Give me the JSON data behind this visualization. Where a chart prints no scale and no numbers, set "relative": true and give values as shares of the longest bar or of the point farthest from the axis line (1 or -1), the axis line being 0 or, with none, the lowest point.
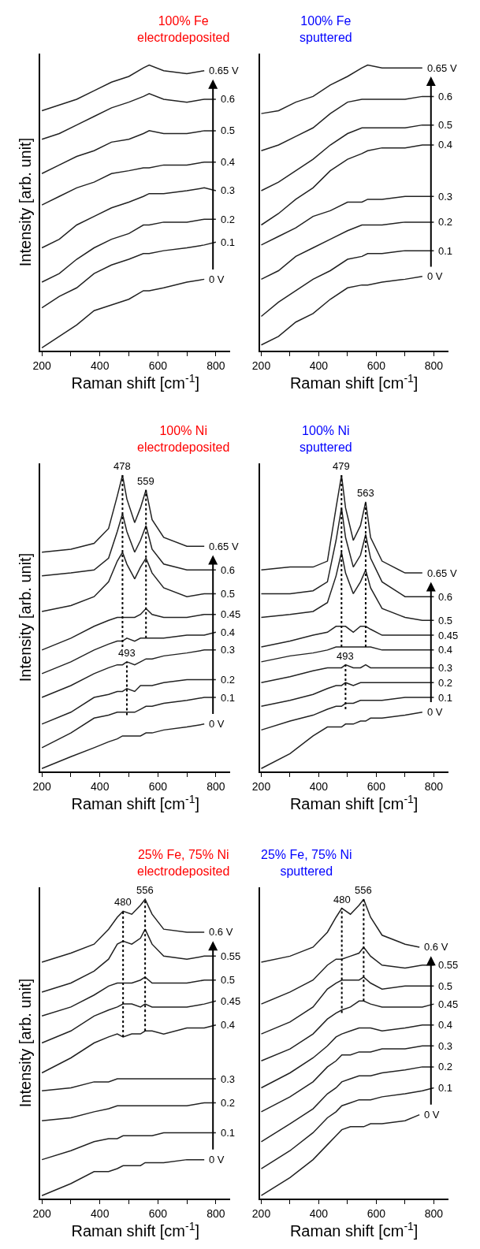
{
  "chart_data": [
    {
      "type": "line",
      "title": "100% Fe\nelectrodeposited",
      "xlabel": "Raman shift [cm$^{-1}$]",
      "ylabel": "Intensity [arb. unit]",
      "relative": true,
      "xlim": [
        195,
        850
      ],
      "xticks": [
        200,
        {
          "value": 300,
          "label": null
        },
        400,
        {
          "value": 500,
          "label": null
        },
        600,
        {
          "value": 700,
          "label": null
        },
        800
      ],
      "grid": false,
      "legend": false,
      "line_style": "solid",
      "x": [
        200,
        260,
        320,
        380,
        440,
        500,
        550,
        570,
        620,
        700,
        760,
        800
      ],
      "series": [
        {
          "name": "0.65 V",
          "color": "#222222",
          "x": [
            200,
            260,
            320,
            380,
            440,
            500,
            550,
            570,
            620,
            700,
            760
          ],
          "values": [
            0.84,
            0.86,
            0.88,
            0.91,
            0.94,
            0.96,
            0.99,
            1.0,
            0.98,
            0.97,
            0.98
          ]
        },
        {
          "name": "0.6",
          "color": "#222222",
          "values": [
            0.74,
            0.76,
            0.79,
            0.82,
            0.85,
            0.87,
            0.89,
            0.9,
            0.88,
            0.87,
            0.88,
            0.88
          ]
        },
        {
          "name": "0.5",
          "color": "#222222",
          "values": [
            0.62,
            0.65,
            0.68,
            0.7,
            0.73,
            0.74,
            0.76,
            0.77,
            0.76,
            0.76,
            0.77,
            0.77
          ]
        },
        {
          "name": "0.4",
          "color": "#222222",
          "values": [
            0.51,
            0.54,
            0.57,
            0.59,
            0.62,
            0.63,
            0.64,
            0.64,
            0.65,
            0.65,
            0.66,
            0.66
          ]
        },
        {
          "name": "0.3",
          "color": "#222222",
          "values": [
            0.36,
            0.39,
            0.44,
            0.47,
            0.5,
            0.52,
            0.54,
            0.55,
            0.55,
            0.56,
            0.57,
            0.56
          ]
        },
        {
          "name": "0.2",
          "color": "#222222",
          "values": [
            0.24,
            0.27,
            0.32,
            0.36,
            0.39,
            0.41,
            0.44,
            0.44,
            0.45,
            0.45,
            0.46,
            0.46
          ]
        },
        {
          "name": "0.1",
          "color": "#222222",
          "values": [
            0.15,
            0.19,
            0.22,
            0.27,
            0.3,
            0.32,
            0.34,
            0.34,
            0.35,
            0.36,
            0.37,
            0.38
          ]
        },
        {
          "name": "0 V",
          "color": "#222222",
          "x": [
            200,
            260,
            320,
            380,
            440,
            500,
            550,
            570,
            620,
            700,
            760
          ],
          "values": [
            0.01,
            0.05,
            0.09,
            0.14,
            0.16,
            0.18,
            0.21,
            0.21,
            0.22,
            0.24,
            0.25
          ]
        }
      ]
    },
    {
      "type": "line",
      "title": "100% Fe\nsputtered",
      "xlabel": "Raman shift [cm$^{-1}$]",
      "relative": true,
      "xlim": [
        195,
        850
      ],
      "xticks": [
        200,
        {
          "value": 300,
          "label": null
        },
        400,
        {
          "value": 500,
          "label": null
        },
        600,
        {
          "value": 700,
          "label": null
        },
        800
      ],
      "grid": false,
      "legend": false,
      "line_style": "solid",
      "x": [
        200,
        260,
        320,
        380,
        440,
        500,
        550,
        570,
        620,
        700,
        760,
        800
      ],
      "series": [
        {
          "name": "0.65 V",
          "color": "#222222",
          "x": [
            200,
            260,
            320,
            380,
            440,
            500,
            550,
            570,
            620,
            700,
            760
          ],
          "values": [
            0.83,
            0.84,
            0.87,
            0.89,
            0.93,
            0.96,
            0.99,
            1.0,
            0.99,
            0.99,
            0.99
          ]
        },
        {
          "name": "0.6",
          "color": "#222222",
          "values": [
            0.7,
            0.72,
            0.75,
            0.78,
            0.83,
            0.87,
            0.88,
            0.88,
            0.88,
            0.88,
            0.89,
            0.89
          ]
        },
        {
          "name": "0.5",
          "color": "#222222",
          "values": [
            0.56,
            0.59,
            0.63,
            0.67,
            0.72,
            0.76,
            0.78,
            0.78,
            0.78,
            0.78,
            0.79,
            0.79
          ]
        },
        {
          "name": "0.4",
          "color": "#222222",
          "values": [
            0.44,
            0.48,
            0.53,
            0.57,
            0.63,
            0.67,
            0.69,
            0.7,
            0.71,
            0.71,
            0.72,
            0.72
          ]
        },
        {
          "name": "0.3",
          "color": "#222222",
          "values": [
            0.37,
            0.4,
            0.43,
            0.47,
            0.49,
            0.52,
            0.52,
            0.53,
            0.53,
            0.54,
            0.54,
            0.54
          ]
        },
        {
          "name": "0.2",
          "color": "#222222",
          "values": [
            0.25,
            0.28,
            0.33,
            0.36,
            0.39,
            0.42,
            0.44,
            0.44,
            0.44,
            0.45,
            0.45,
            0.45
          ]
        },
        {
          "name": "0.1",
          "color": "#222222",
          "values": [
            0.12,
            0.17,
            0.21,
            0.25,
            0.28,
            0.32,
            0.33,
            0.34,
            0.34,
            0.35,
            0.35,
            0.35
          ]
        },
        {
          "name": "0 V",
          "color": "#222222",
          "x": [
            200,
            260,
            320,
            380,
            440,
            500,
            550,
            570,
            620,
            700,
            760
          ],
          "values": [
            0.02,
            0.05,
            0.1,
            0.13,
            0.18,
            0.22,
            0.23,
            0.23,
            0.24,
            0.25,
            0.26
          ]
        }
      ]
    },
    {
      "type": "line",
      "title": "100% Ni\nelectrodeposited",
      "xlabel": "Raman shift [cm$^{-1}$]",
      "ylabel": "Intensity [arb. unit]",
      "relative": true,
      "xlim": [
        195,
        850
      ],
      "xticks": [
        200,
        {
          "value": 300,
          "label": null
        },
        400,
        {
          "value": 500,
          "label": null
        },
        600,
        {
          "value": 700,
          "label": null
        },
        800
      ],
      "grid": false,
      "legend": false,
      "line_style": "solid",
      "x": [
        200,
        300,
        380,
        430,
        460,
        478,
        493,
        520,
        540,
        559,
        580,
        620,
        700,
        760,
        800
      ],
      "annotations": [
        {
          "text": "478",
          "x": 478,
          "y": 1.0
        },
        {
          "text": "559",
          "x": 559,
          "y": 0.95
        },
        {
          "text": "493",
          "x": 493,
          "y": 0.37
        }
      ],
      "series": [
        {
          "name": "0.65 V",
          "color": "#222222",
          "x": [
            200,
            300,
            380,
            430,
            460,
            478,
            493,
            520,
            540,
            559,
            580,
            620,
            700,
            760
          ],
          "values": [
            0.74,
            0.75,
            0.77,
            0.82,
            0.93,
            1.0,
            0.92,
            0.84,
            0.89,
            0.95,
            0.85,
            0.79,
            0.76,
            0.76
          ]
        },
        {
          "name": "0.6",
          "color": "#222222",
          "values": [
            0.66,
            0.67,
            0.68,
            0.72,
            0.81,
            0.87,
            0.81,
            0.74,
            0.78,
            0.83,
            0.75,
            0.7,
            0.68,
            0.68,
            0.68
          ]
        },
        {
          "name": "0.5",
          "color": "#222222",
          "values": [
            0.54,
            0.56,
            0.59,
            0.64,
            0.71,
            0.74,
            0.7,
            0.65,
            0.69,
            0.72,
            0.67,
            0.62,
            0.59,
            0.6,
            0.6
          ]
        },
        {
          "name": "0.45",
          "color": "#222222",
          "values": [
            0.41,
            0.45,
            0.49,
            0.51,
            0.52,
            0.52,
            0.52,
            0.52,
            0.53,
            0.55,
            0.53,
            0.52,
            0.52,
            0.53,
            0.53
          ]
        },
        {
          "name": "0.4",
          "color": "#222222",
          "values": [
            0.33,
            0.37,
            0.41,
            0.43,
            0.44,
            0.44,
            0.45,
            0.44,
            0.45,
            0.45,
            0.45,
            0.45,
            0.46,
            0.46,
            0.47
          ]
        },
        {
          "name": "0.3",
          "color": "#222222",
          "values": [
            0.25,
            0.29,
            0.33,
            0.35,
            0.36,
            0.36,
            0.37,
            0.36,
            0.37,
            0.38,
            0.38,
            0.39,
            0.4,
            0.41,
            0.41
          ]
        },
        {
          "name": "0.2",
          "color": "#222222",
          "values": [
            0.16,
            0.2,
            0.25,
            0.26,
            0.27,
            0.27,
            0.28,
            0.27,
            0.29,
            0.29,
            0.29,
            0.3,
            0.31,
            0.31,
            0.31
          ]
        },
        {
          "name": "0.1",
          "color": "#222222",
          "values": [
            0.08,
            0.13,
            0.18,
            0.19,
            0.2,
            0.2,
            0.2,
            0.2,
            0.21,
            0.22,
            0.22,
            0.23,
            0.24,
            0.25,
            0.25
          ]
        },
        {
          "name": "0 V",
          "color": "#222222",
          "x": [
            200,
            300,
            380,
            430,
            460,
            478,
            493,
            520,
            540,
            559,
            580,
            620,
            700,
            760
          ],
          "values": [
            0.01,
            0.05,
            0.08,
            0.1,
            0.11,
            0.12,
            0.12,
            0.12,
            0.12,
            0.13,
            0.13,
            0.14,
            0.15,
            0.16
          ]
        },
        {
          "color": "#000000",
          "line_style": "dotted",
          "x": [
            478,
            478
          ],
          "values": [
            0.42,
            1.0
          ]
        },
        {
          "color": "#000000",
          "line_style": "dotted",
          "x": [
            559,
            559
          ],
          "values": [
            0.45,
            0.95
          ]
        },
        {
          "color": "#000000",
          "line_style": "dotted",
          "x": [
            493,
            493
          ],
          "values": [
            0.19,
            0.37
          ]
        }
      ]
    },
    {
      "type": "line",
      "title": "100% Ni\nsputtered",
      "xlabel": "Raman shift [cm$^{-1}$]",
      "relative": true,
      "xlim": [
        195,
        850
      ],
      "xticks": [
        200,
        {
          "value": 300,
          "label": null
        },
        400,
        {
          "value": 500,
          "label": null
        },
        600,
        {
          "value": 700,
          "label": null
        },
        800
      ],
      "grid": false,
      "legend": false,
      "line_style": "solid",
      "x": [
        200,
        300,
        380,
        430,
        460,
        479,
        493,
        520,
        545,
        563,
        580,
        620,
        700,
        760,
        800
      ],
      "annotations": [
        {
          "text": "479",
          "x": 479,
          "y": 1.0
        },
        {
          "text": "563",
          "x": 563,
          "y": 0.91
        },
        {
          "text": "493",
          "x": 493,
          "y": 0.36
        }
      ],
      "series": [
        {
          "name": "0.65 V",
          "color": "#222222",
          "x": [
            200,
            300,
            380,
            430,
            460,
            479,
            493,
            520,
            545,
            563,
            580,
            620,
            700,
            760
          ],
          "values": [
            0.68,
            0.69,
            0.69,
            0.71,
            0.89,
            1.0,
            0.89,
            0.78,
            0.83,
            0.91,
            0.79,
            0.71,
            0.67,
            0.67
          ]
        },
        {
          "name": "0.6",
          "color": "#222222",
          "values": [
            0.6,
            0.6,
            0.61,
            0.64,
            0.78,
            0.89,
            0.79,
            0.69,
            0.73,
            0.8,
            0.72,
            0.64,
            0.59,
            0.59,
            0.59
          ]
        },
        {
          "name": "0.5",
          "color": "#222222",
          "values": [
            0.52,
            0.53,
            0.54,
            0.57,
            0.66,
            0.74,
            0.67,
            0.6,
            0.64,
            0.68,
            0.62,
            0.55,
            0.52,
            0.51,
            0.51
          ]
        },
        {
          "name": "0.45",
          "color": "#222222",
          "values": [
            0.42,
            0.44,
            0.46,
            0.47,
            0.49,
            0.49,
            0.49,
            0.47,
            0.49,
            0.49,
            0.48,
            0.46,
            0.46,
            0.46,
            0.46
          ]
        },
        {
          "name": "0.4",
          "color": "#222222",
          "values": [
            0.37,
            0.39,
            0.4,
            0.41,
            0.42,
            0.42,
            0.42,
            0.42,
            0.42,
            0.42,
            0.42,
            0.41,
            0.41,
            0.41,
            0.41
          ]
        },
        {
          "name": "0.3",
          "color": "#222222",
          "values": [
            0.3,
            0.32,
            0.34,
            0.35,
            0.35,
            0.35,
            0.36,
            0.35,
            0.35,
            0.36,
            0.35,
            0.35,
            0.35,
            0.35,
            0.35
          ]
        },
        {
          "name": "0.2",
          "color": "#222222",
          "values": [
            0.22,
            0.24,
            0.26,
            0.28,
            0.29,
            0.29,
            0.3,
            0.29,
            0.3,
            0.3,
            0.3,
            0.3,
            0.3,
            0.3,
            0.3
          ]
        },
        {
          "name": "0.1",
          "color": "#222222",
          "values": [
            0.14,
            0.17,
            0.19,
            0.21,
            0.22,
            0.22,
            0.23,
            0.23,
            0.24,
            0.24,
            0.24,
            0.24,
            0.25,
            0.25,
            0.25
          ]
        },
        {
          "name": "0 V",
          "color": "#222222",
          "x": [
            200,
            300,
            380,
            430,
            460,
            479,
            493,
            520,
            545,
            563,
            580,
            620,
            700,
            760
          ],
          "values": [
            0.01,
            0.06,
            0.12,
            0.15,
            0.15,
            0.15,
            0.16,
            0.16,
            0.17,
            0.17,
            0.18,
            0.18,
            0.19,
            0.2
          ]
        },
        {
          "color": "#000000",
          "line_style": "dotted",
          "x": [
            479,
            479
          ],
          "values": [
            0.42,
            1.0
          ]
        },
        {
          "color": "#000000",
          "line_style": "dotted",
          "x": [
            563,
            563
          ],
          "values": [
            0.42,
            0.91
          ]
        },
        {
          "color": "#000000",
          "line_style": "dotted",
          "x": [
            493,
            493
          ],
          "values": [
            0.21,
            0.36
          ]
        }
      ]
    },
    {
      "type": "line",
      "title": "25% Fe, 75% Ni\nelectrodeposited",
      "xlabel": "Raman shift [cm$^{-1}$]",
      "ylabel": "Intensity [arb. unit]",
      "relative": true,
      "xlim": [
        195,
        850
      ],
      "xticks": [
        200,
        {
          "value": 300,
          "label": null
        },
        400,
        {
          "value": 500,
          "label": null
        },
        600,
        {
          "value": 700,
          "label": null
        },
        800
      ],
      "grid": false,
      "legend": false,
      "line_style": "solid",
      "x": [
        200,
        300,
        380,
        430,
        460,
        480,
        510,
        540,
        556,
        580,
        620,
        700,
        760,
        800
      ],
      "annotations": [
        {
          "text": "480",
          "x": 480,
          "y": 0.96
        },
        {
          "text": "556",
          "x": 556,
          "y": 1.0
        }
      ],
      "series": [
        {
          "name": "0.6 V",
          "color": "#222222",
          "x": [
            200,
            300,
            380,
            430,
            460,
            480,
            510,
            540,
            556,
            580,
            620,
            700,
            760
          ],
          "values": [
            0.79,
            0.82,
            0.85,
            0.9,
            0.94,
            0.96,
            0.95,
            0.98,
            1.0,
            0.95,
            0.9,
            0.89,
            0.89
          ]
        },
        {
          "name": "0.55",
          "color": "#222222",
          "values": [
            0.69,
            0.72,
            0.76,
            0.8,
            0.85,
            0.86,
            0.85,
            0.87,
            0.9,
            0.85,
            0.81,
            0.8,
            0.81,
            0.81
          ]
        },
        {
          "name": "0.5",
          "color": "#222222",
          "values": [
            0.61,
            0.64,
            0.68,
            0.71,
            0.72,
            0.72,
            0.72,
            0.73,
            0.74,
            0.72,
            0.72,
            0.72,
            0.73,
            0.73
          ]
        },
        {
          "name": "0.45",
          "color": "#222222",
          "values": [
            0.52,
            0.56,
            0.61,
            0.63,
            0.64,
            0.65,
            0.65,
            0.64,
            0.65,
            0.64,
            0.64,
            0.64,
            0.65,
            0.66
          ]
        },
        {
          "name": "0.4",
          "color": "#222222",
          "values": [
            0.42,
            0.47,
            0.52,
            0.54,
            0.55,
            0.54,
            0.55,
            0.55,
            0.56,
            0.56,
            0.55,
            0.57,
            0.57,
            0.58
          ]
        },
        {
          "name": "0.3",
          "color": "#222222",
          "values": [
            0.36,
            0.37,
            0.39,
            0.39,
            0.4,
            0.4,
            0.4,
            0.4,
            0.4,
            0.4,
            0.4,
            0.4,
            0.4,
            0.4
          ]
        },
        {
          "name": "0.2",
          "color": "#222222",
          "values": [
            0.26,
            0.27,
            0.29,
            0.3,
            0.31,
            0.31,
            0.31,
            0.31,
            0.31,
            0.31,
            0.31,
            0.31,
            0.32,
            0.32
          ]
        },
        {
          "name": "0.1",
          "color": "#222222",
          "values": [
            0.13,
            0.16,
            0.19,
            0.2,
            0.2,
            0.21,
            0.21,
            0.21,
            0.21,
            0.21,
            0.22,
            0.22,
            0.22,
            0.22
          ]
        },
        {
          "name": "0 V",
          "color": "#222222",
          "x": [
            200,
            300,
            380,
            430,
            460,
            480,
            510,
            540,
            556,
            580,
            620,
            700,
            760
          ],
          "values": [
            0.01,
            0.05,
            0.09,
            0.09,
            0.1,
            0.11,
            0.11,
            0.11,
            0.12,
            0.12,
            0.12,
            0.13,
            0.13
          ]
        },
        {
          "color": "#000000",
          "line_style": "dotted",
          "x": [
            480,
            480
          ],
          "values": [
            0.54,
            0.96
          ]
        },
        {
          "color": "#000000",
          "line_style": "dotted",
          "x": [
            556,
            556
          ],
          "values": [
            0.56,
            1.0
          ]
        }
      ]
    },
    {
      "type": "line",
      "title": "25% Fe, 75% Ni\nsputtered",
      "xlabel": "Raman shift [cm$^{-1}$]",
      "relative": true,
      "xlim": [
        195,
        850
      ],
      "xticks": [
        200,
        {
          "value": 300,
          "label": null
        },
        400,
        {
          "value": 500,
          "label": null
        },
        600,
        {
          "value": 700,
          "label": null
        },
        800
      ],
      "grid": false,
      "legend": false,
      "line_style": "solid",
      "x": [
        200,
        300,
        380,
        430,
        460,
        480,
        510,
        540,
        556,
        580,
        620,
        700,
        760,
        800
      ],
      "annotations": [
        {
          "text": "480",
          "x": 480,
          "y": 0.97
        },
        {
          "text": "556",
          "x": 556,
          "y": 1.0
        }
      ],
      "series": [
        {
          "name": "0.6 V",
          "color": "#222222",
          "x": [
            200,
            300,
            380,
            430,
            460,
            480,
            510,
            540,
            556,
            580,
            620,
            700,
            750
          ],
          "values": [
            0.79,
            0.81,
            0.84,
            0.89,
            0.94,
            0.97,
            0.95,
            0.98,
            1.0,
            0.94,
            0.88,
            0.85,
            0.84
          ]
        },
        {
          "name": "0.55",
          "color": "#222222",
          "values": [
            0.65,
            0.69,
            0.73,
            0.78,
            0.8,
            0.8,
            0.81,
            0.82,
            0.84,
            0.81,
            0.78,
            0.77,
            0.78,
            0.78
          ]
        },
        {
          "name": "0.5",
          "color": "#222222",
          "values": [
            0.55,
            0.59,
            0.64,
            0.7,
            0.72,
            0.73,
            0.73,
            0.73,
            0.74,
            0.72,
            0.7,
            0.71,
            0.71,
            0.71
          ]
        },
        {
          "name": "0.45",
          "color": "#222222",
          "values": [
            0.46,
            0.5,
            0.55,
            0.6,
            0.62,
            0.63,
            0.64,
            0.66,
            0.66,
            0.65,
            0.64,
            0.64,
            0.64,
            0.65
          ]
        },
        {
          "name": "0.4",
          "color": "#222222",
          "values": [
            0.37,
            0.42,
            0.47,
            0.51,
            0.54,
            0.55,
            0.56,
            0.57,
            0.57,
            0.57,
            0.56,
            0.57,
            0.58,
            0.58
          ]
        },
        {
          "name": "0.3",
          "color": "#222222",
          "values": [
            0.29,
            0.34,
            0.39,
            0.44,
            0.46,
            0.48,
            0.48,
            0.49,
            0.49,
            0.49,
            0.5,
            0.5,
            0.51,
            0.51
          ]
        },
        {
          "name": "0.2",
          "color": "#222222",
          "values": [
            0.19,
            0.25,
            0.3,
            0.35,
            0.37,
            0.39,
            0.4,
            0.41,
            0.41,
            0.41,
            0.42,
            0.43,
            0.44,
            0.44
          ]
        },
        {
          "name": "0.1",
          "color": "#222222",
          "values": [
            0.1,
            0.16,
            0.22,
            0.27,
            0.29,
            0.31,
            0.32,
            0.33,
            0.33,
            0.33,
            0.34,
            0.35,
            0.36,
            0.37
          ]
        },
        {
          "name": "0 V",
          "color": "#222222",
          "x": [
            200,
            300,
            380,
            430,
            460,
            480,
            510,
            540,
            556,
            580,
            620,
            700,
            750
          ],
          "values": [
            0.01,
            0.07,
            0.13,
            0.18,
            0.21,
            0.23,
            0.24,
            0.24,
            0.24,
            0.25,
            0.25,
            0.26,
            0.28
          ]
        },
        {
          "color": "#000000",
          "line_style": "dotted",
          "x": [
            480,
            480
          ],
          "values": [
            0.62,
            0.97
          ]
        },
        {
          "color": "#000000",
          "line_style": "dotted",
          "x": [
            556,
            556
          ],
          "values": [
            0.66,
            1.0
          ]
        }
      ]
    }
  ]
}
